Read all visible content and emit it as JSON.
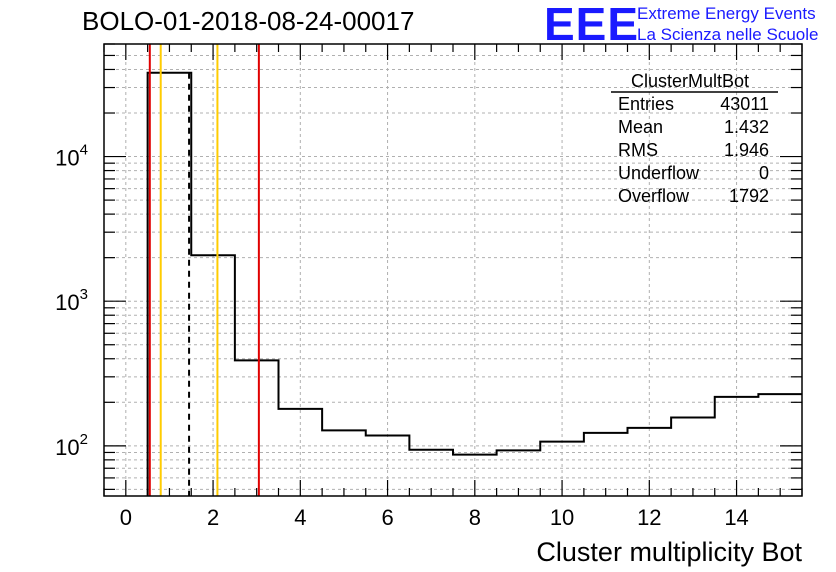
{
  "header": {
    "title": "BOLO-01-2018-08-24-00017",
    "logo_mark": "EEE",
    "logo_line1": "Extreme Energy Events",
    "logo_line2": "La Scienza nelle Scuole"
  },
  "stats": {
    "name": "ClusterMultBot",
    "rows": [
      {
        "label": "Entries",
        "value": "43011"
      },
      {
        "label": "Mean",
        "value": "1.432"
      },
      {
        "label": "RMS",
        "value": "1.946"
      },
      {
        "label": "Underflow",
        "value": "0"
      },
      {
        "label": "Overflow",
        "value": "1792"
      }
    ]
  },
  "chart_data": {
    "type": "histogram",
    "title": "BOLO-01-2018-08-24-00017",
    "xlabel": "Cluster multiplicity Bot",
    "ylabel": "",
    "xlim": [
      -0.5,
      15.5
    ],
    "ylim": [
      45,
      60000
    ],
    "yscale": "log",
    "grid": true,
    "x_ticks": [
      0,
      2,
      4,
      6,
      8,
      10,
      12,
      14
    ],
    "y_tick_labels": [
      {
        "value": 100,
        "base": "10",
        "exp": "2"
      },
      {
        "value": 1000,
        "base": "10",
        "exp": "3"
      },
      {
        "value": 10000,
        "base": "10",
        "exp": "4"
      }
    ],
    "bins": [
      {
        "lo": 0.5,
        "hi": 1.5,
        "y": 38000
      },
      {
        "lo": 1.5,
        "hi": 2.5,
        "y": 2080
      },
      {
        "lo": 2.5,
        "hi": 3.5,
        "y": 390
      },
      {
        "lo": 3.5,
        "hi": 4.5,
        "y": 180
      },
      {
        "lo": 4.5,
        "hi": 5.5,
        "y": 128
      },
      {
        "lo": 5.5,
        "hi": 6.5,
        "y": 118
      },
      {
        "lo": 6.5,
        "hi": 7.5,
        "y": 94
      },
      {
        "lo": 7.5,
        "hi": 8.5,
        "y": 87
      },
      {
        "lo": 8.5,
        "hi": 9.5,
        "y": 93
      },
      {
        "lo": 9.5,
        "hi": 10.5,
        "y": 107
      },
      {
        "lo": 10.5,
        "hi": 11.5,
        "y": 123
      },
      {
        "lo": 11.5,
        "hi": 12.5,
        "y": 133
      },
      {
        "lo": 12.5,
        "hi": 13.5,
        "y": 157
      },
      {
        "lo": 13.5,
        "hi": 14.5,
        "y": 218
      },
      {
        "lo": 14.5,
        "hi": 15.5,
        "y": 228
      }
    ],
    "vlines": [
      {
        "x": 0.55,
        "color": "#e00000",
        "style": "solid"
      },
      {
        "x": 0.8,
        "color": "#ffcc00",
        "style": "solid"
      },
      {
        "x": 1.45,
        "color": "#000000",
        "style": "dashed"
      },
      {
        "x": 2.1,
        "color": "#ffcc00",
        "style": "solid"
      },
      {
        "x": 3.05,
        "color": "#e00000",
        "style": "solid"
      }
    ]
  }
}
